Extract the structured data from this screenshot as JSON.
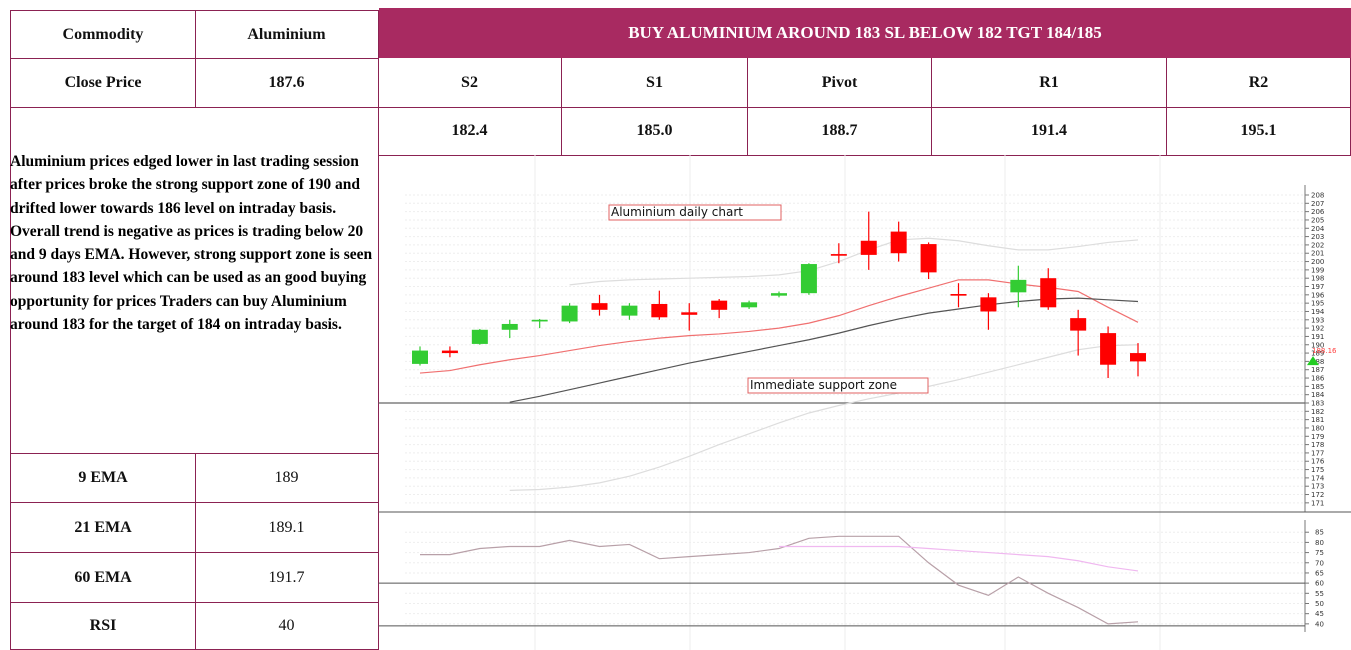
{
  "header": {
    "commodity_label": "Commodity",
    "commodity": "Aluminium",
    "call": "BUY ALUMINIUM AROUND 183 SL BELOW 182 TGT 184/185"
  },
  "close": {
    "label": "Close Price",
    "value": "187.6"
  },
  "levels": {
    "labels": [
      "S2",
      "S1",
      "Pivot",
      "R1",
      "R2"
    ],
    "values": [
      "182.4",
      "185.0",
      "188.7",
      "191.4",
      "195.1"
    ]
  },
  "commentary": "Aluminium prices edged lower in last trading session after prices broke the strong support zone of 190 and drifted lower towards 186 level on intraday basis. Overall trend is negative as prices is trading below 20 and 9 days EMA. However, strong support zone is seen around 183 level which can be used as an good buying opportunity for prices Traders can buy Aluminium around 183 for the target of 184 on intraday basis.",
  "indicators": [
    {
      "label": "9 EMA",
      "value": "189"
    },
    {
      "label": "21 EMA",
      "value": "189.1"
    },
    {
      "label": "60 EMA",
      "value": "191.7"
    },
    {
      "label": "RSI",
      "value": "40"
    }
  ],
  "chart_data": {
    "type": "candlestick",
    "title": "Aluminium daily chart",
    "annotation": "Immediate support zone",
    "support": 183,
    "ylim": [
      169.9,
      209.2
    ],
    "yticks": [
      171,
      172,
      173,
      174,
      175,
      176,
      177,
      178,
      179,
      180,
      181,
      182,
      183,
      184,
      185,
      186,
      187,
      188,
      189,
      190,
      191,
      192,
      193,
      194,
      195,
      196,
      197,
      198,
      199,
      200,
      201,
      202,
      203,
      204,
      205,
      206,
      207,
      208
    ],
    "grid": true,
    "up_color": "#33cc33",
    "down_color": "#ff0000",
    "open": [
      187.7,
      189.3,
      190.1,
      191.8,
      192.8,
      192.8,
      195.0,
      193.5,
      194.9,
      193.9,
      195.3,
      194.5,
      195.9,
      196.2,
      200.9,
      202.5,
      203.6,
      202.1,
      196.1,
      195.7,
      196.3,
      198.0,
      193.2,
      191.4,
      189.0
    ],
    "high": [
      189.8,
      189.8,
      191.9,
      193.0,
      193.1,
      195.0,
      196.0,
      195.0,
      196.5,
      195.0,
      195.5,
      195.3,
      196.4,
      199.8,
      202.2,
      206.0,
      204.8,
      202.3,
      197.4,
      196.2,
      199.5,
      199.2,
      194.2,
      192.2,
      190.2
    ],
    "low": [
      187.5,
      188.5,
      190.0,
      190.8,
      192.0,
      192.6,
      193.5,
      193.0,
      193.0,
      191.7,
      193.2,
      194.3,
      195.7,
      196.0,
      199.8,
      199.0,
      200.0,
      197.9,
      194.5,
      191.8,
      194.5,
      194.2,
      188.7,
      186.0,
      186.2
    ],
    "close": [
      189.3,
      189.0,
      191.8,
      192.5,
      193.0,
      194.7,
      194.2,
      194.7,
      193.3,
      193.6,
      194.2,
      195.1,
      196.2,
      199.7,
      200.7,
      200.8,
      201.0,
      198.7,
      195.9,
      194.0,
      197.8,
      194.5,
      191.7,
      187.6,
      188.0
    ],
    "series": [
      {
        "color": "#f07070",
        "values": [
          186.6,
          186.9,
          187.6,
          188.2,
          188.7,
          189.3,
          189.9,
          190.4,
          190.8,
          191.1,
          191.3,
          191.6,
          192.0,
          192.6,
          193.5,
          194.7,
          195.8,
          196.8,
          197.8,
          197.8,
          197.3,
          196.9,
          196.4,
          194.5,
          192.7
        ]
      },
      {
        "color": "#555555",
        "values": [
          null,
          null,
          null,
          183.1,
          183.8,
          184.6,
          185.4,
          186.2,
          187.0,
          187.8,
          188.5,
          189.2,
          189.9,
          190.6,
          191.4,
          192.3,
          193.1,
          193.8,
          194.3,
          194.8,
          195.2,
          195.5,
          195.6,
          195.4,
          195.2
        ]
      },
      {
        "color": "#dddddd",
        "values": [
          null,
          null,
          null,
          null,
          null,
          197.2,
          197.6,
          197.8,
          197.9,
          198.0,
          198.1,
          198.2,
          198.4,
          198.9,
          200.0,
          201.4,
          202.6,
          202.8,
          202.5,
          201.9,
          201.4,
          201.4,
          201.8,
          202.3,
          202.6
        ]
      },
      {
        "color": "#dddddd",
        "values": [
          null,
          null,
          null,
          172.5,
          172.6,
          172.9,
          173.4,
          174.2,
          175.3,
          176.6,
          178.0,
          179.3,
          180.6,
          181.8,
          182.7,
          183.5,
          184.2,
          185.0,
          185.8,
          186.7,
          187.6,
          188.5,
          189.4,
          189.9,
          190.0
        ]
      }
    ],
    "last_price": {
      "value": 188.16,
      "label": "188.16"
    },
    "rsi": {
      "ylim": [
        36,
        91
      ],
      "yticks": [
        40,
        45,
        50,
        55,
        60,
        65,
        70,
        75,
        80,
        85
      ],
      "hlines": [
        60,
        39
      ],
      "series": [
        {
          "color": "#b8a0a8",
          "values": [
            74,
            74,
            77,
            78,
            78,
            81,
            78,
            79,
            72,
            73,
            74,
            75,
            77,
            82,
            83,
            83,
            83,
            70,
            59,
            54,
            63,
            55,
            48,
            40,
            41
          ]
        },
        {
          "color": "#f0b8f0",
          "values": [
            null,
            null,
            null,
            null,
            null,
            null,
            null,
            null,
            null,
            null,
            null,
            null,
            78,
            78,
            78,
            78,
            78,
            77,
            76,
            75,
            74,
            73,
            71,
            68,
            66
          ]
        }
      ]
    }
  }
}
